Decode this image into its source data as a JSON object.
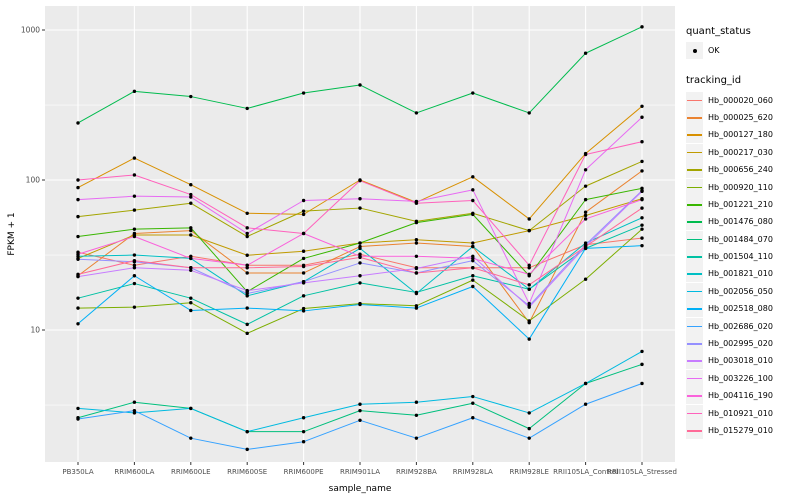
{
  "figure": {
    "y_axis_title": "FPKM + 1",
    "x_axis_title": "sample_name",
    "legend": {
      "quant_status_title": "quant_status",
      "quant_status_items": [
        {
          "label": "OK",
          "symbol": "black-point"
        }
      ],
      "tracking_id_title": "tracking_id"
    },
    "colors": {
      "panel_background": "#EBEBEB",
      "legend_key_background": "#F2F2F2",
      "gridline": "#FFFFFF",
      "tick_label": "#4D4D4D",
      "point": "#000000"
    }
  },
  "chart_data": {
    "type": "line",
    "title": "",
    "xlabel": "sample_name",
    "ylabel": "FPKM + 1",
    "y_scale": "log10",
    "ylim": [
      1.5,
      1100
    ],
    "y_major_ticks": [
      1000,
      100,
      10
    ],
    "y_minor_ticks": [
      316,
      31.6,
      3.16
    ],
    "grid": "white major and minor on gray panel",
    "legend_position": "right",
    "point_style": "black dot on every value (quant_status OK)",
    "x": [
      "PB350LA",
      "RRIM600LA",
      "RRIM600LE",
      "RRIM600SE",
      "RRIM600PE",
      "RRIM901LA",
      "RRIM928BA",
      "RRIM928LA",
      "RRIM928LE",
      "RRII105LA_Control",
      "RRII105LA_Stressed"
    ],
    "series": [
      {
        "name": "Hb_000020_060",
        "color": "#F8766D",
        "values": [
          33,
          27,
          31,
          27,
          27,
          32,
          26,
          26,
          26,
          37,
          41
        ]
      },
      {
        "name": "Hb_000025_620",
        "color": "#EA8331",
        "values": [
          23,
          44,
          46,
          24,
          24,
          36,
          38,
          36,
          11.2,
          61,
          115
        ]
      },
      {
        "name": "Hb_000127_180",
        "color": "#D89000",
        "values": [
          89,
          140,
          93,
          60,
          59,
          100,
          71,
          105,
          55,
          150,
          310
        ]
      },
      {
        "name": "Hb_000217_030",
        "color": "#C09B00",
        "values": [
          30,
          43,
          43,
          31.5,
          33.5,
          38,
          40,
          38,
          46,
          58,
          75
        ]
      },
      {
        "name": "Hb_000656_240",
        "color": "#A3A500",
        "values": [
          57,
          63,
          70,
          42,
          62,
          65,
          53,
          60,
          46,
          91,
          133
        ]
      },
      {
        "name": "Hb_000920_110",
        "color": "#7CAE00",
        "values": [
          14,
          14.2,
          15.2,
          9.5,
          13.9,
          15,
          14.5,
          21.5,
          11.5,
          21.8,
          47
        ]
      },
      {
        "name": "Hb_001221_210",
        "color": "#39B600",
        "values": [
          42,
          47,
          48,
          18,
          30,
          38,
          52,
          59,
          23,
          74,
          88
        ]
      },
      {
        "name": "Hb_001476_080",
        "color": "#00BB4E",
        "values": [
          240,
          390,
          360,
          300,
          380,
          430,
          280,
          380,
          280,
          700,
          1050
        ]
      },
      {
        "name": "Hb_001484_070",
        "color": "#00BF7D",
        "values": [
          2.6,
          3.3,
          3.0,
          2.1,
          2.1,
          2.9,
          2.7,
          3.25,
          2.2,
          4.4,
          5.9
        ]
      },
      {
        "name": "Hb_001504_110",
        "color": "#00C1A3",
        "values": [
          16.3,
          20.4,
          16.3,
          10.9,
          16.9,
          20.6,
          17.8,
          23,
          18.7,
          35,
          50
        ]
      },
      {
        "name": "Hb_001821_010",
        "color": "#00BFC4",
        "values": [
          31,
          31.6,
          30,
          16.9,
          21,
          35,
          17.5,
          36,
          18.7,
          38,
          56
        ]
      },
      {
        "name": "Hb_002056_050",
        "color": "#00BAE0",
        "values": [
          3.0,
          2.8,
          3.0,
          2.1,
          2.6,
          3.2,
          3.3,
          3.6,
          2.8,
          4.4,
          7.2
        ]
      },
      {
        "name": "Hb_002518_080",
        "color": "#00B0F6",
        "values": [
          11,
          23,
          13.5,
          14,
          13.4,
          14.8,
          14,
          19.5,
          8.7,
          35,
          36.5
        ]
      },
      {
        "name": "Hb_002686_020",
        "color": "#35A2FF",
        "values": [
          2.55,
          2.9,
          1.9,
          1.6,
          1.8,
          2.5,
          1.9,
          2.6,
          1.9,
          3.2,
          4.4
        ]
      },
      {
        "name": "Hb_002995_020",
        "color": "#9590FF",
        "values": [
          29.6,
          28.5,
          26,
          17.5,
          21,
          28,
          24,
          29,
          14.5,
          37,
          85
        ]
      },
      {
        "name": "Hb_003018_010",
        "color": "#C77CFF",
        "values": [
          22.7,
          26,
          25,
          18.3,
          20.6,
          23,
          25.7,
          31,
          14.2,
          36,
          84
        ]
      },
      {
        "name": "Hb_003226_100",
        "color": "#E76BF3",
        "values": [
          74,
          78,
          77,
          44,
          73,
          75,
          72,
          86,
          15,
          117,
          262
        ]
      },
      {
        "name": "Hb_004116_190",
        "color": "#FA62DB",
        "values": [
          32,
          42,
          30,
          27,
          44,
          31,
          31,
          30,
          23.5,
          55,
          74
        ]
      },
      {
        "name": "Hb_010921_010",
        "color": "#FF62BC",
        "values": [
          100,
          108,
          80,
          48,
          44,
          99,
          70,
          73,
          27,
          148,
          180
        ]
      },
      {
        "name": "Hb_015279_010",
        "color": "#FF6A98",
        "values": [
          23.5,
          29,
          26,
          26,
          26.5,
          30.5,
          24,
          26,
          20,
          36,
          65
        ]
      }
    ]
  }
}
